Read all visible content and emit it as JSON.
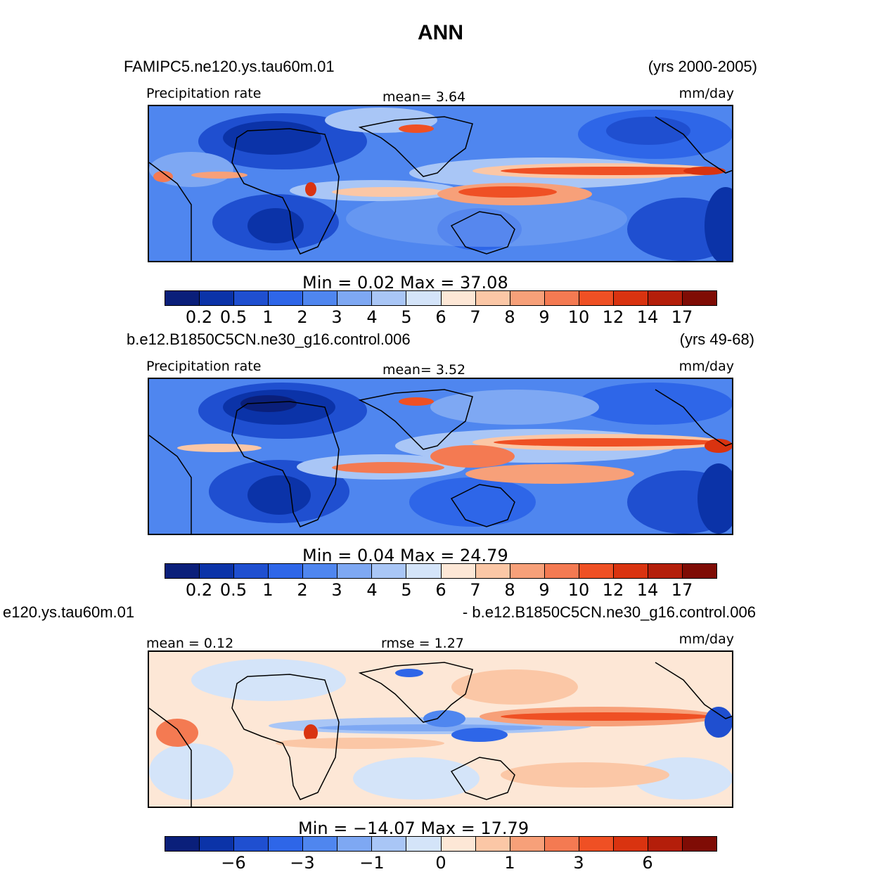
{
  "figure_title": "ANN",
  "colors": [
    "#0a1f7a",
    "#0b33a8",
    "#1f4fd0",
    "#2e66e8",
    "#4f86ef",
    "#7ea8f3",
    "#a9c6f6",
    "#d4e4f9",
    "#fde7d6",
    "#fbc7a6",
    "#f7a079",
    "#f47a52",
    "#ef5024",
    "#d93310",
    "#b41e0a",
    "#7f0c05"
  ],
  "panels": [
    {
      "case_name": "FAMIPC5.ne120.ys.tau60m.01",
      "years": "(yrs 2000-2005)",
      "left_label": "Precipitation  rate",
      "center_label": "mean=     3.64",
      "units": "mm/day",
      "minmax": "Min  =     0.02  Max  =    37.08",
      "ticks": [
        "0.2",
        "0.5",
        "1",
        "2",
        "3",
        "4",
        "5",
        "6",
        "7",
        "8",
        "9",
        "10",
        "12",
        "14",
        "17"
      ]
    },
    {
      "case_name": "b.e12.B1850C5CN.ne30_g16.control.006",
      "years": "(yrs 49-68)",
      "left_label": "Precipitation  rate",
      "center_label": "mean=     3.52",
      "units": "mm/day",
      "minmax": "Min  =     0.04  Max  =    24.79",
      "ticks": [
        "0.2",
        "0.5",
        "1",
        "2",
        "3",
        "4",
        "5",
        "6",
        "7",
        "8",
        "9",
        "10",
        "12",
        "14",
        "17"
      ]
    },
    {
      "case_name": "e120.ys.tau60m.01",
      "years": "- b.e12.B1850C5CN.ne30_g16.control.006",
      "left_label": "mean  =    0.12",
      "center_label": "rmse  =     1.27",
      "units": "mm/day",
      "minmax": "Min  =  −14.07  Max  =    17.79",
      "ticks": [
        "−6",
        "−3",
        "−1",
        "0",
        "1",
        "3",
        "6"
      ]
    }
  ]
}
